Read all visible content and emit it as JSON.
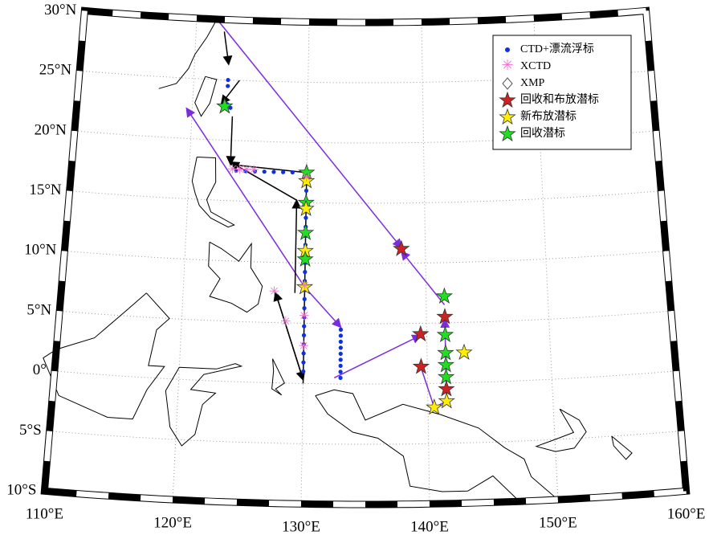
{
  "map": {
    "lat_ticks": [
      {
        "value": 30,
        "label": "30°N"
      },
      {
        "value": 25,
        "label": "25°N"
      },
      {
        "value": 20,
        "label": "20°N"
      },
      {
        "value": 15,
        "label": "15°N"
      },
      {
        "value": 10,
        "label": "10°N"
      },
      {
        "value": 5,
        "label": "5°N"
      },
      {
        "value": 0,
        "label": "0°"
      },
      {
        "value": -5,
        "label": "5°S"
      },
      {
        "value": -10,
        "label": "10°S"
      }
    ],
    "lon_ticks": [
      {
        "value": 110,
        "label": "110°E"
      },
      {
        "value": 120,
        "label": "120°E"
      },
      {
        "value": 130,
        "label": "130°E"
      },
      {
        "value": 140,
        "label": "140°E"
      },
      {
        "value": 150,
        "label": "150°E"
      },
      {
        "value": 160,
        "label": "160°E"
      }
    ],
    "legend": [
      "CTD+漂流浮标",
      "XCTD",
      "XMP",
      "回收和布放潜标",
      "新布放潜标",
      "回收潜标"
    ]
  }
}
